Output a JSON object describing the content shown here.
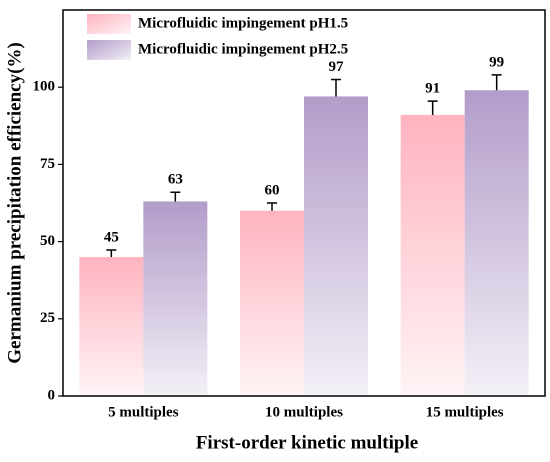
{
  "chart_data": {
    "type": "bar",
    "x_label": "First-order kinetic multiple",
    "y_label": "Germanium precipitation efficiency(%)",
    "categories": [
      "5 multiples",
      "10 multiples",
      "15 multiples"
    ],
    "series": [
      {
        "name": "Microfluidic impingement pH1.5",
        "color": "#ffb3c0",
        "values": [
          45,
          60,
          91
        ],
        "errors": [
          2.3,
          2.5,
          4.5
        ]
      },
      {
        "name": "Microfluidic impingement pH2.5",
        "color": "#b29cc9",
        "values": [
          63,
          97,
          99
        ],
        "errors": [
          3,
          5.5,
          5
        ]
      }
    ],
    "ylim": [
      0,
      125
    ],
    "yticks": [
      0,
      25,
      50,
      75,
      100
    ],
    "legend": "top-left"
  }
}
